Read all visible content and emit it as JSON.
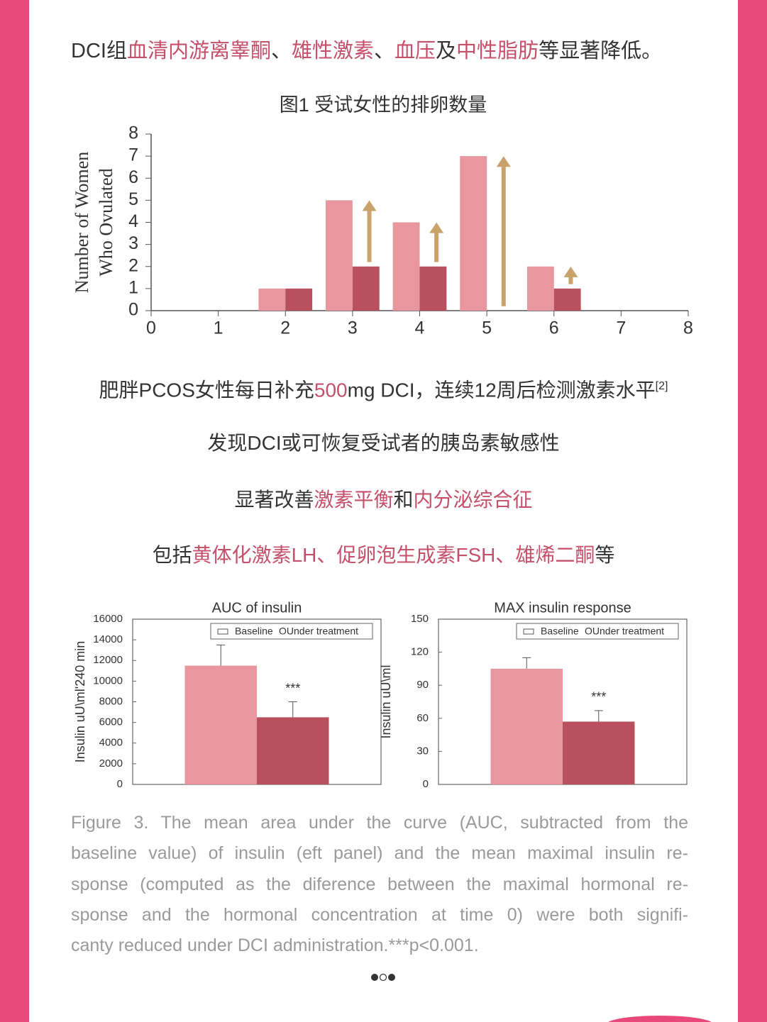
{
  "intro": [
    {
      "text": "DCI组",
      "highlight": false
    },
    {
      "text": "血清内游离睾酮",
      "highlight": true
    },
    {
      "text": "、",
      "highlight": false
    },
    {
      "text": "雄性激素",
      "highlight": true
    },
    {
      "text": "、",
      "highlight": false
    },
    {
      "text": "血压",
      "highlight": true
    },
    {
      "text": "及",
      "highlight": false
    },
    {
      "text": "中性脂肪",
      "highlight": true
    },
    {
      "text": "等显著降低。",
      "highlight": false
    }
  ],
  "paragraphs": [
    [
      {
        "text": "肥胖PCOS女性每日补充",
        "highlight": false
      },
      {
        "text": "500",
        "highlight": true
      },
      {
        "text": "mg DCI，连续12周后检测激素水平",
        "highlight": false
      },
      {
        "text": "[2]",
        "highlight": false,
        "sup": true
      }
    ],
    [
      {
        "text": "发现DCI或可恢复受试者的胰岛素敏感性",
        "highlight": false
      }
    ],
    [
      {
        "text": "显著改善",
        "highlight": false
      },
      {
        "text": "激素平衡",
        "highlight": true
      },
      {
        "text": "和",
        "highlight": false
      },
      {
        "text": "内分泌综合征",
        "highlight": true
      }
    ],
    [
      {
        "text": "包括",
        "highlight": false
      },
      {
        "text": "黄体化激素LH、促卵泡生成素FSH、雄烯二酮",
        "highlight": true
      },
      {
        "text": "等",
        "highlight": false
      }
    ]
  ],
  "caption": [
    "Figure 3. The mean area under the curve (AUC, subtracted from the",
    "baseline value) of insulin (eft panel) and the mean maximal insulin re-",
    "sponse (computed as the diference between the maximal hormonal re-",
    "sponse and the hormonal concentration at time 0) were both signifi-",
    "canty reduced under DCI administration.***p<0.001."
  ],
  "chart_data": [
    {
      "type": "bar",
      "title": "图1 受试女性的排卵数量",
      "ylabel": [
        "Number of Women",
        "Who Ovulated"
      ],
      "x": [
        2,
        3,
        4,
        5,
        6
      ],
      "series": [
        {
          "color": "#e8979e",
          "values": [
            1,
            5,
            4,
            7,
            2
          ]
        },
        {
          "color": "#b8505e",
          "values": [
            1,
            2,
            2,
            null,
            1
          ]
        }
      ],
      "xlim": [
        0,
        8
      ],
      "xticks": [
        0,
        1,
        2,
        3,
        4,
        5,
        6,
        7,
        8
      ],
      "ylim": [
        0,
        8
      ],
      "yticks": [
        0,
        1,
        2,
        3,
        4,
        5,
        6,
        7,
        8
      ],
      "arrow_color": "#c9a26c"
    },
    {
      "type": "bar_error",
      "title": "AUC of insulin",
      "ylabel": "Insulin uU\\ml'240 min",
      "series": [
        {
          "name": "Baseline",
          "color": "#e8979e",
          "values": [
            11500
          ],
          "errors": [
            2000
          ]
        },
        {
          "name": "OUnder treatment",
          "color": "#b8505e",
          "values": [
            6500
          ],
          "errors": [
            1500
          ]
        }
      ],
      "ylim": [
        0,
        16000
      ],
      "yticks": [
        0,
        2000,
        4000,
        6000,
        8000,
        10000,
        12000,
        14000,
        16000
      ],
      "annotation": "***"
    },
    {
      "type": "bar_error",
      "title": "MAX insulin response",
      "ylabel": "Insulin uU\\ml",
      "series": [
        {
          "name": "Baseline",
          "color": "#e8979e",
          "values": [
            105
          ],
          "errors": [
            10
          ]
        },
        {
          "name": "OUnder treatment",
          "color": "#b8505e",
          "values": [
            57
          ],
          "errors": [
            10
          ]
        }
      ],
      "ylim": [
        0,
        150
      ],
      "yticks": [
        0,
        30,
        60,
        90,
        120,
        150
      ],
      "annotation": "***"
    }
  ]
}
